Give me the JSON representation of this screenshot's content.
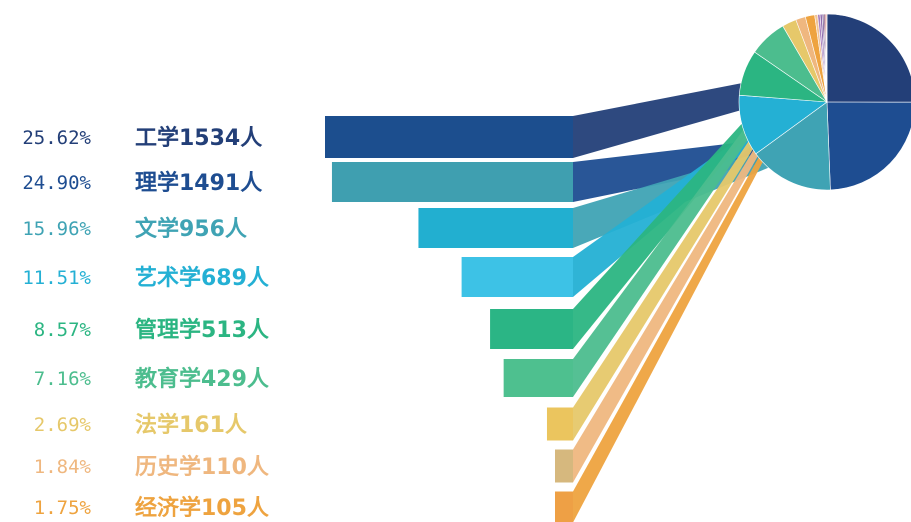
{
  "chart_data": {
    "type": "pie",
    "categories": [
      {
        "percent_label": "25.62%",
        "label": "工学1534人",
        "name": "工学",
        "count": 1534,
        "percent": 25.62,
        "color": "#233f78",
        "bar_color": "#1c4e8e"
      },
      {
        "percent_label": "24.90%",
        "label": "理学1491人",
        "name": "理学",
        "count": 1491,
        "percent": 24.9,
        "color": "#1e4d91",
        "bar_color": "#3f9fb0"
      },
      {
        "percent_label": "15.96%",
        "label": "文学956人",
        "name": "文学",
        "count": 956,
        "percent": 15.96,
        "color": "#3fa3b4",
        "bar_color": "#22afd0"
      },
      {
        "percent_label": "11.51%",
        "label": "艺术学689人",
        "name": "艺术学",
        "count": 689,
        "percent": 11.51,
        "color": "#24b0d4",
        "bar_color": "#3dc2e6"
      },
      {
        "percent_label": "8.57%",
        "label": "管理学513人",
        "name": "管理学",
        "count": 513,
        "percent": 8.57,
        "color": "#2bb582",
        "bar_color": "#2bb585"
      },
      {
        "percent_label": "7.16%",
        "label": "教育学429人",
        "name": "教育学",
        "count": 429,
        "percent": 7.16,
        "color": "#4cbd8e",
        "bar_color": "#4ec08f"
      },
      {
        "percent_label": "2.69%",
        "label": "法学161人",
        "name": "法学",
        "count": 161,
        "percent": 2.69,
        "color": "#e6c86a",
        "bar_color": "#ebc55e"
      },
      {
        "percent_label": "1.84%",
        "label": "历史学110人",
        "name": "历史学",
        "count": 110,
        "percent": 1.84,
        "color": "#efb77f",
        "bar_color": "#d6b87e"
      },
      {
        "percent_label": "1.75%",
        "label": "经济学105人",
        "name": "经济学",
        "count": 105,
        "percent": 1.75,
        "color": "#eea33f",
        "bar_color": "#eea045"
      }
    ],
    "other_slices": [
      {
        "percent": 0.55,
        "color": "#f1c497"
      },
      {
        "percent": 0.45,
        "color": "#a87fbd"
      },
      {
        "percent": 0.4,
        "color": "#8f6cae"
      },
      {
        "percent": 0.3,
        "color": "#6d4a8c"
      },
      {
        "percent": 0.25,
        "color": "#7a3f6a"
      },
      {
        "percent": 0.2,
        "color": "#b03a3a"
      },
      {
        "percent": 0.15,
        "color": "#c0392b"
      }
    ]
  }
}
